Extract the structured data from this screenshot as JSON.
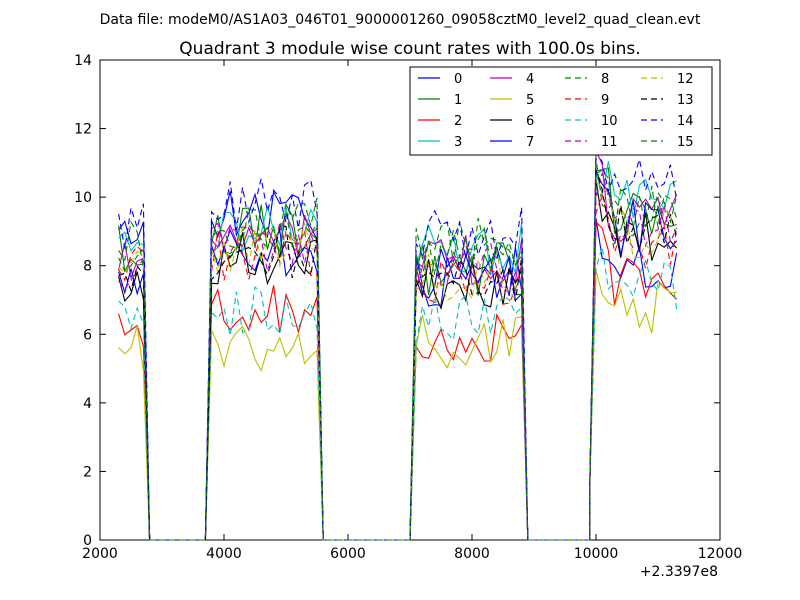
{
  "chart_data": {
    "type": "line",
    "suptitle": "Data file: modeM0/AS1A03_046T01_9000001260_09058cztM0_level2_quad_clean.evt",
    "title": "Quadrant 3 module wise count rates with 100.0s bins.",
    "xlabel": "",
    "ylabel": "",
    "xlim": [
      2000,
      12000
    ],
    "ylim": [
      0,
      14
    ],
    "x_offset_label": "+2.3397e8",
    "xticks": [
      2000,
      4000,
      6000,
      8000,
      10000,
      12000
    ],
    "yticks": [
      0,
      2,
      4,
      6,
      8,
      10,
      12,
      14
    ],
    "grid": false,
    "legend": {
      "placement": "top-right",
      "columns": 4
    },
    "segments": [
      {
        "start": 2300,
        "gap_until": 3700
      },
      {
        "start": 3700,
        "gap_until": 7000
      },
      {
        "start": 7000,
        "gap_until": 9900
      },
      {
        "start": 9900,
        "gap_until": 11300
      }
    ],
    "series": [
      {
        "name": "0",
        "color": "#0000ff",
        "dash": "solid",
        "levels": [
          8.5,
          9.5,
          7.8,
          8.0
        ]
      },
      {
        "name": "1",
        "color": "#008000",
        "dash": "solid",
        "levels": [
          8.6,
          9.0,
          7.9,
          9.7
        ]
      },
      {
        "name": "2",
        "color": "#ff0000",
        "dash": "solid",
        "levels": [
          6.4,
          6.8,
          6.0,
          7.6
        ]
      },
      {
        "name": "3",
        "color": "#00bfbf",
        "dash": "solid",
        "levels": [
          8.2,
          9.2,
          8.5,
          10.0
        ]
      },
      {
        "name": "4",
        "color": "#bf00bf",
        "dash": "solid",
        "levels": [
          8.4,
          8.9,
          8.1,
          9.4
        ]
      },
      {
        "name": "5",
        "color": "#bfbf00",
        "dash": "solid",
        "levels": [
          5.6,
          5.6,
          5.8,
          6.8
        ]
      },
      {
        "name": "6",
        "color": "#000000",
        "dash": "solid",
        "levels": [
          7.6,
          8.2,
          7.4,
          8.9
        ]
      },
      {
        "name": "7",
        "color": "#0000ff",
        "dash": "solid",
        "levels": [
          7.8,
          8.4,
          7.6,
          9.1
        ]
      },
      {
        "name": "8",
        "color": "#008000",
        "dash": "dashed",
        "levels": [
          8.3,
          8.9,
          8.6,
          9.4
        ]
      },
      {
        "name": "9",
        "color": "#ff0000",
        "dash": "dashed",
        "levels": [
          7.8,
          8.3,
          7.6,
          8.6
        ]
      },
      {
        "name": "10",
        "color": "#00bfbf",
        "dash": "dashed",
        "levels": [
          6.2,
          6.6,
          6.4,
          7.4
        ]
      },
      {
        "name": "11",
        "color": "#bf00bf",
        "dash": "dashed",
        "levels": [
          8.0,
          8.6,
          8.0,
          9.3
        ]
      },
      {
        "name": "12",
        "color": "#bfbf00",
        "dash": "dashed",
        "levels": [
          7.9,
          8.6,
          7.7,
          9.0
        ]
      },
      {
        "name": "13",
        "color": "#000000",
        "dash": "dashed",
        "levels": [
          7.7,
          8.4,
          7.6,
          9.0
        ]
      },
      {
        "name": "14",
        "color": "#0000ff",
        "dash": "dashed",
        "levels": [
          9.2,
          9.8,
          9.0,
          10.4
        ]
      },
      {
        "name": "15",
        "color": "#008000",
        "dash": "dashed",
        "levels": [
          8.7,
          9.2,
          8.3,
          9.7
        ]
      }
    ]
  }
}
